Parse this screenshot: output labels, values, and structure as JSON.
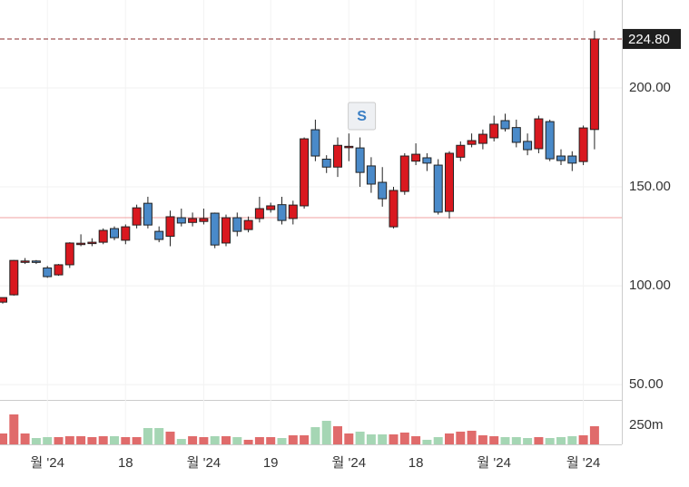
{
  "chart_data": {
    "type": "candlestick",
    "categories": [
      null,
      null,
      null,
      null,
      "월 '24",
      null,
      null,
      null,
      null,
      null,
      null,
      "18",
      null,
      null,
      null,
      null,
      null,
      null,
      "월 '24",
      null,
      null,
      null,
      null,
      null,
      "19",
      null,
      null,
      null,
      null,
      null,
      null,
      "월 '24",
      null,
      null,
      null,
      null,
      null,
      "18",
      null,
      null,
      null,
      null,
      null,
      null,
      "월 '24",
      null,
      null,
      null,
      null,
      null,
      null,
      null,
      "월 '24",
      null
    ],
    "open": [
      91.7,
      95.4,
      112,
      112.5,
      109,
      105.5,
      110.6,
      121,
      121.5,
      122,
      128.9,
      123,
      130.7,
      141.7,
      127.5,
      125,
      134.4,
      132,
      132.5,
      136.7,
      121.6,
      134.4,
      128.4,
      134,
      138.5,
      141,
      134,
      140.4,
      178.9,
      164,
      160,
      170,
      169.7,
      160.6,
      152.3,
      129.8,
      147.7,
      163,
      164.7,
      161,
      137.6,
      165,
      171.5,
      172,
      174.8,
      183.5,
      180,
      173,
      169.3,
      183,
      165.6,
      165.6,
      162.8,
      179
    ],
    "high": [
      94,
      113,
      114,
      113,
      110,
      111,
      122,
      126,
      124,
      129,
      130,
      131,
      141,
      145,
      130,
      138,
      139,
      137,
      139,
      137,
      136,
      137,
      135,
      145,
      142,
      145,
      143,
      175,
      184,
      166,
      175,
      177,
      175,
      165,
      160,
      150,
      167,
      172,
      167,
      164,
      168,
      173,
      177,
      179,
      186,
      187,
      184,
      177,
      186,
      184,
      169,
      168,
      181,
      229
    ],
    "low": [
      91,
      95,
      111,
      111,
      104,
      105,
      109,
      120,
      120,
      121,
      123,
      121,
      129,
      129,
      122,
      120,
      130,
      130,
      131,
      119,
      120,
      125,
      127,
      132,
      137,
      131,
      131,
      139,
      163,
      157,
      155,
      163,
      150,
      147,
      140,
      129,
      146,
      161,
      158,
      136,
      134,
      163,
      170,
      169,
      173,
      178,
      170,
      166,
      167,
      163,
      161,
      158,
      161,
      169
    ],
    "close": [
      94,
      112.8,
      112.5,
      111.8,
      104.6,
      110.6,
      121.6,
      121.5,
      122,
      128,
      124.3,
      129.8,
      139.4,
      130.7,
      123.4,
      134.9,
      131.7,
      134,
      134,
      120.6,
      134.4,
      127.5,
      133,
      139,
      140.4,
      133,
      140.8,
      174.3,
      165.6,
      160,
      171,
      170.5,
      157.3,
      151.4,
      144,
      148.2,
      165.6,
      166.5,
      162,
      137.2,
      167,
      171,
      173.4,
      176.6,
      181.7,
      179.4,
      172.5,
      168.8,
      184.4,
      164.2,
      163.3,
      162,
      179.8,
      224.8
    ],
    "volume": [
      143,
      393,
      143,
      83,
      95,
      95,
      107,
      107,
      95,
      107,
      107,
      95,
      95,
      214,
      214,
      167,
      71,
      107,
      95,
      107,
      107,
      95,
      60,
      95,
      95,
      83,
      119,
      119,
      226,
      309,
      238,
      143,
      167,
      131,
      131,
      131,
      155,
      107,
      60,
      95,
      143,
      167,
      179,
      119,
      107,
      95,
      95,
      83,
      95,
      83,
      95,
      107,
      119,
      238
    ],
    "up_color": "#d9181f",
    "down_color": "#4a8ac9",
    "volume_up_color": "#e06b6b",
    "volume_down_color": "#a5d6b4",
    "ylim": [
      42.7,
      244.5
    ],
    "yticks": [
      {
        "value": 50,
        "label": "50.00"
      },
      {
        "value": 100,
        "label": "100.00"
      },
      {
        "value": 150,
        "label": "150.00"
      },
      {
        "value": 200,
        "label": "200.00"
      }
    ],
    "volume_ylim": [
      0,
      571
    ],
    "volume_yticks": [
      {
        "value": 250,
        "label": "250m"
      }
    ],
    "last_price": {
      "value": 224.8,
      "label": "224.80"
    },
    "reference_line": 134.4,
    "annotation": {
      "text": "S",
      "index": 32
    },
    "grid": true
  }
}
